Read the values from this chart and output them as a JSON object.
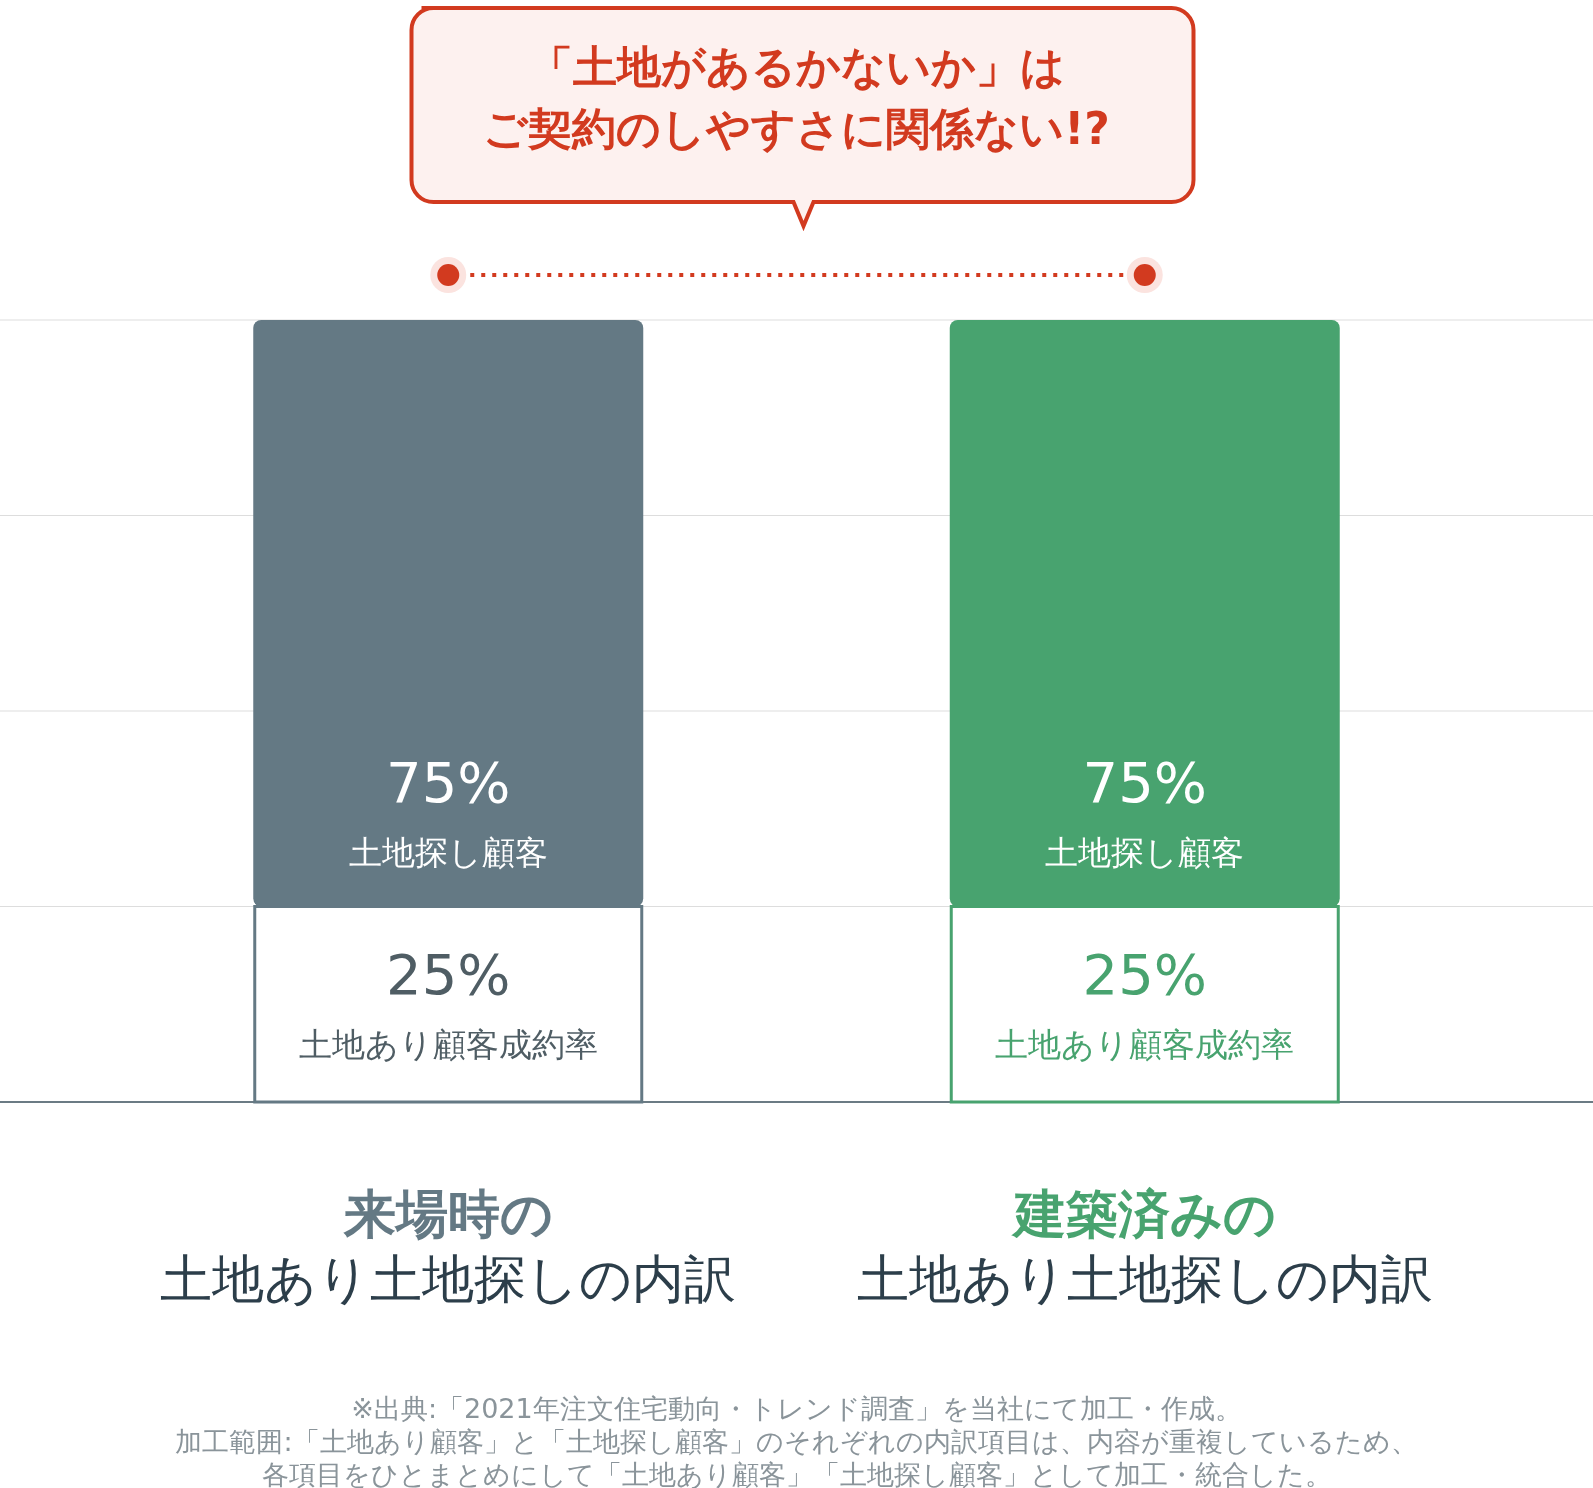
{
  "chart_data": {
    "type": "bar",
    "stacked": true,
    "title": "「土地があるかないか」はご契約のしやすさに関係ない!?",
    "categories": [
      "来場時の土地あり土地探しの内訳",
      "建築済みの土地あり土地探しの内訳"
    ],
    "series": [
      {
        "name": "土地あり顧客成約率",
        "colors": [
          "#ffffff",
          "#ffffff"
        ],
        "values": [
          25,
          25
        ],
        "value_labels": [
          "25%",
          "25%"
        ]
      },
      {
        "name": "土地探し顧客",
        "colors": [
          "#647984",
          "#48a36f"
        ],
        "values": [
          75,
          75
        ],
        "value_labels": [
          "75%",
          "75%"
        ]
      }
    ],
    "ylim": [
      0,
      100
    ],
    "yticks": [
      {
        "value": 0,
        "label": null
      },
      {
        "value": 25,
        "label": null
      },
      {
        "value": 50,
        "label": null
      },
      {
        "value": 75,
        "label": null
      },
      {
        "value": 100,
        "label": null
      }
    ],
    "grid": "y",
    "legend": false,
    "annotations": [
      "※出典:「2021年注文住宅動向・トレンド調査」を当社にて加工・作成。",
      "加工範囲:「土地あり顧客」と「土地探し顧客」のそれぞれの内訳項目は、内容が重複しているため、",
      "各項目をひとまとめにして「土地あり顧客」「土地探し顧客」として加工・統合した。"
    ]
  }
}
